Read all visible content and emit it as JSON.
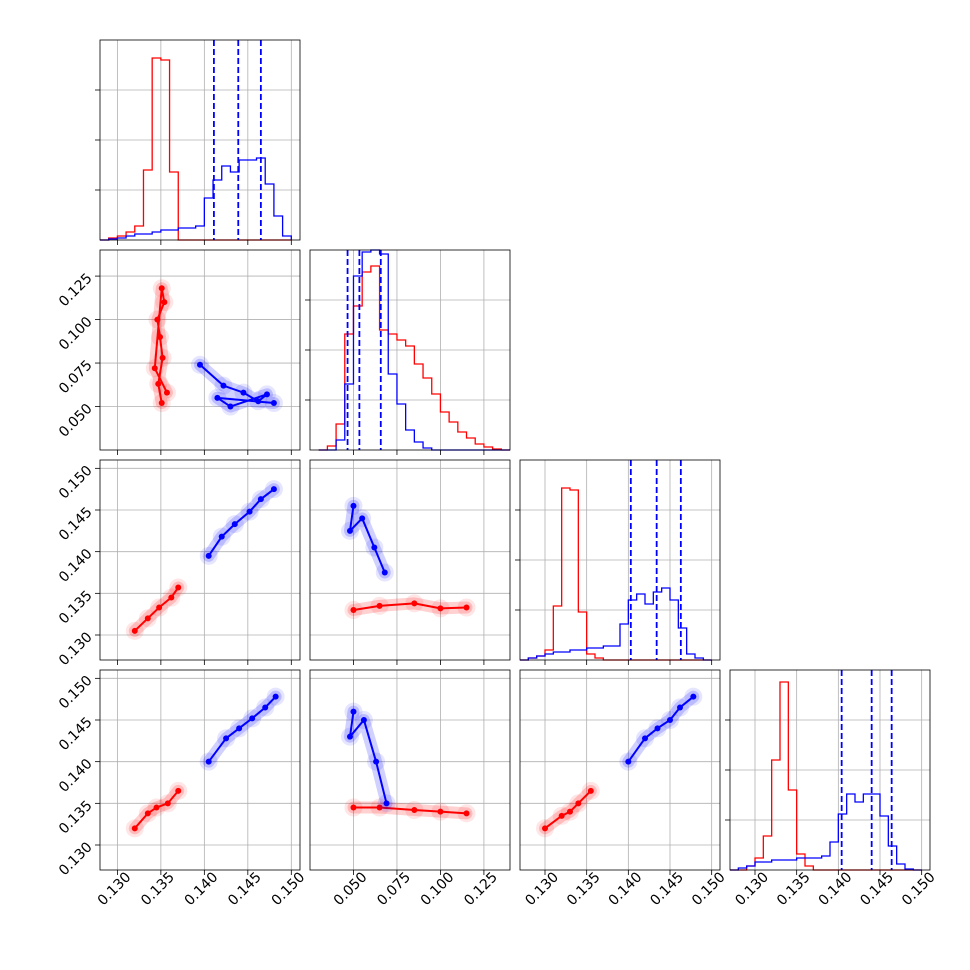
{
  "chart_data": {
    "type": "corner",
    "colors": {
      "series_a": "#ff0000",
      "series_b": "#0000ff",
      "grid": "#b0b0b0"
    },
    "grid": true,
    "parameters": [
      {
        "range": [
          0.128,
          0.151
        ],
        "ticks": [
          0.13,
          0.135,
          0.14,
          0.145,
          0.15
        ],
        "tick_labels": [
          "0.130",
          "0.135",
          "0.140",
          "0.145",
          "0.150"
        ]
      },
      {
        "range": [
          0.025,
          0.14
        ],
        "ticks": [
          0.05,
          0.075,
          0.1,
          0.125
        ],
        "tick_labels": [
          "0.050",
          "0.075",
          "0.100",
          "0.125"
        ]
      },
      {
        "range": [
          0.127,
          0.151
        ],
        "ticks": [
          0.13,
          0.135,
          0.14,
          0.145,
          0.15
        ],
        "tick_labels": [
          "0.130",
          "0.135",
          "0.140",
          "0.145",
          "0.150"
        ]
      },
      {
        "range": [
          0.127,
          0.151
        ],
        "ticks": [
          0.13,
          0.135,
          0.14,
          0.145,
          0.15
        ],
        "tick_labels": [
          "0.130",
          "0.135",
          "0.140",
          "0.145",
          "0.150"
        ]
      }
    ],
    "histograms": [
      {
        "param": 0,
        "ymax": 1.0,
        "series": [
          {
            "name": "",
            "color": "#ff0000",
            "edges": [
              0.128,
              0.129,
              0.13,
              0.131,
              0.132,
              0.133,
              0.134,
              0.135,
              0.136,
              0.137,
              0.138,
              0.139,
              0.14,
              0.141,
              0.142,
              0.143,
              0.144,
              0.145,
              0.146,
              0.147,
              0.148,
              0.149,
              0.15
            ],
            "counts": [
              0,
              0.01,
              0.02,
              0.04,
              0.07,
              0.35,
              0.91,
              0.9,
              0.34,
              0.0,
              0,
              0,
              0,
              0,
              0,
              0,
              0,
              0,
              0,
              0,
              0,
              0
            ]
          },
          {
            "name": "",
            "color": "#0000ff",
            "edges": [
              0.128,
              0.129,
              0.13,
              0.131,
              0.132,
              0.133,
              0.134,
              0.135,
              0.136,
              0.137,
              0.138,
              0.139,
              0.14,
              0.141,
              0.142,
              0.143,
              0.144,
              0.145,
              0.146,
              0.147,
              0.148,
              0.149,
              0.15
            ],
            "counts": [
              0,
              0.005,
              0.01,
              0.02,
              0.03,
              0.03,
              0.04,
              0.05,
              0.05,
              0.06,
              0.06,
              0.07,
              0.21,
              0.3,
              0.37,
              0.34,
              0.4,
              0.4,
              0.41,
              0.28,
              0.12,
              0.02
            ]
          }
        ],
        "quantiles_b": [
          0.1411,
          0.1439,
          0.1465
        ]
      },
      {
        "param": 1,
        "ymax": 1.0,
        "series": [
          {
            "name": "",
            "color": "#ff0000",
            "edges": [
              0.03,
              0.035,
              0.04,
              0.045,
              0.05,
              0.055,
              0.06,
              0.065,
              0.07,
              0.075,
              0.08,
              0.085,
              0.09,
              0.095,
              0.1,
              0.105,
              0.11,
              0.115,
              0.12,
              0.125,
              0.13,
              0.135,
              0.14
            ],
            "counts": [
              0,
              0.02,
              0.13,
              0.58,
              0.72,
              0.89,
              0.92,
              0.6,
              0.58,
              0.55,
              0.52,
              0.43,
              0.36,
              0.28,
              0.19,
              0.14,
              0.09,
              0.06,
              0.03,
              0.015,
              0.005,
              0
            ]
          },
          {
            "name": "",
            "color": "#0000ff",
            "edges": [
              0.03,
              0.035,
              0.04,
              0.045,
              0.05,
              0.055,
              0.06,
              0.065,
              0.07,
              0.075,
              0.08,
              0.085,
              0.09,
              0.095,
              0.1,
              0.105,
              0.11,
              0.115,
              0.12,
              0.125,
              0.13,
              0.135,
              0.14
            ],
            "counts": [
              0,
              0,
              0.05,
              0.33,
              0.87,
              0.99,
              1.0,
              0.98,
              0.38,
              0.23,
              0.1,
              0.04,
              0.01,
              0,
              0,
              0,
              0,
              0,
              0,
              0,
              0,
              0
            ]
          }
        ],
        "quantiles_b": [
          0.0466,
          0.0534,
          0.0657
        ]
      },
      {
        "param": 2,
        "ymax": 1.0,
        "series": [
          {
            "name": "",
            "color": "#ff0000",
            "edges": [
              0.127,
              0.128,
              0.129,
              0.13,
              0.131,
              0.132,
              0.133,
              0.134,
              0.135,
              0.136,
              0.137,
              0.138,
              0.139,
              0.14,
              0.141,
              0.142,
              0.143,
              0.144,
              0.145,
              0.146,
              0.147,
              0.148,
              0.149,
              0.15
            ],
            "counts": [
              0,
              0.01,
              0.02,
              0.05,
              0.27,
              0.86,
              0.85,
              0.24,
              0.03,
              0.01,
              0,
              0,
              0,
              0,
              0,
              0,
              0,
              0,
              0,
              0,
              0,
              0,
              0
            ]
          },
          {
            "name": "",
            "color": "#0000ff",
            "edges": [
              0.127,
              0.128,
              0.129,
              0.13,
              0.131,
              0.132,
              0.133,
              0.134,
              0.135,
              0.136,
              0.137,
              0.138,
              0.139,
              0.14,
              0.141,
              0.142,
              0.143,
              0.144,
              0.145,
              0.146,
              0.147,
              0.148,
              0.149,
              0.15
            ],
            "counts": [
              0,
              0.01,
              0.02,
              0.03,
              0.04,
              0.04,
              0.05,
              0.05,
              0.06,
              0.06,
              0.07,
              0.07,
              0.18,
              0.3,
              0.33,
              0.28,
              0.34,
              0.36,
              0.3,
              0.16,
              0.03,
              0.01,
              0
            ]
          }
        ],
        "quantiles_b": [
          0.1403,
          0.1434,
          0.1463
        ]
      },
      {
        "param": 3,
        "ymax": 1.0,
        "series": [
          {
            "name": "",
            "color": "#ff0000",
            "edges": [
              0.127,
              0.128,
              0.129,
              0.13,
              0.131,
              0.132,
              0.133,
              0.134,
              0.135,
              0.136,
              0.137,
              0.138,
              0.139,
              0.14,
              0.141,
              0.142,
              0.143,
              0.144,
              0.145,
              0.146,
              0.147,
              0.148,
              0.149,
              0.15
            ],
            "counts": [
              0,
              0,
              0.02,
              0.06,
              0.17,
              0.55,
              0.94,
              0.4,
              0.08,
              0.02,
              0,
              0,
              0,
              0,
              0,
              0,
              0,
              0,
              0,
              0,
              0,
              0,
              0
            ]
          },
          {
            "name": "",
            "color": "#0000ff",
            "edges": [
              0.127,
              0.128,
              0.129,
              0.13,
              0.131,
              0.132,
              0.133,
              0.134,
              0.135,
              0.136,
              0.137,
              0.138,
              0.139,
              0.14,
              0.141,
              0.142,
              0.143,
              0.144,
              0.145,
              0.146,
              0.147,
              0.148,
              0.149,
              0.15
            ],
            "counts": [
              0,
              0.01,
              0.02,
              0.04,
              0.04,
              0.05,
              0.05,
              0.05,
              0.06,
              0.06,
              0.06,
              0.07,
              0.14,
              0.28,
              0.38,
              0.34,
              0.38,
              0.38,
              0.27,
              0.12,
              0.03,
              0.005,
              0
            ]
          }
        ],
        "quantiles_b": [
          0.1404,
          0.144,
          0.1464
        ]
      }
    ],
    "scatters": [
      {
        "x_param": 0,
        "y_param": 1,
        "series": [
          {
            "name": "",
            "color": "#ff0000",
            "points": [
              [
                0.1351,
                0.052
              ],
              [
                0.1347,
                0.063
              ],
              [
                0.1352,
                0.078
              ],
              [
                0.1349,
                0.09
              ],
              [
                0.1346,
                0.1
              ],
              [
                0.1354,
                0.11
              ],
              [
                0.1351,
                0.118
              ],
              [
                0.1343,
                0.072
              ],
              [
                0.1357,
                0.058
              ]
            ]
          },
          {
            "name": "",
            "color": "#0000ff",
            "points": [
              [
                0.1395,
                0.074
              ],
              [
                0.1422,
                0.062
              ],
              [
                0.1445,
                0.058
              ],
              [
                0.1462,
                0.053
              ],
              [
                0.1472,
                0.057
              ],
              [
                0.143,
                0.05
              ],
              [
                0.1415,
                0.055
              ],
              [
                0.148,
                0.052
              ]
            ]
          }
        ]
      },
      {
        "x_param": 0,
        "y_param": 2,
        "series": [
          {
            "name": "",
            "color": "#ff0000",
            "points": [
              [
                0.132,
                0.1305
              ],
              [
                0.1335,
                0.132
              ],
              [
                0.1348,
                0.1333
              ],
              [
                0.1362,
                0.1345
              ],
              [
                0.137,
                0.1357
              ]
            ]
          },
          {
            "name": "",
            "color": "#0000ff",
            "points": [
              [
                0.1405,
                0.1395
              ],
              [
                0.142,
                0.1418
              ],
              [
                0.1435,
                0.1433
              ],
              [
                0.1452,
                0.1448
              ],
              [
                0.1465,
                0.1463
              ],
              [
                0.148,
                0.1475
              ]
            ]
          }
        ]
      },
      {
        "x_param": 1,
        "y_param": 2,
        "series": [
          {
            "name": "",
            "color": "#ff0000",
            "points": [
              [
                0.05,
                0.133
              ],
              [
                0.065,
                0.1335
              ],
              [
                0.085,
                0.1338
              ],
              [
                0.1,
                0.1332
              ],
              [
                0.115,
                0.1333
              ]
            ]
          },
          {
            "name": "",
            "color": "#0000ff",
            "points": [
              [
                0.05,
                0.1455
              ],
              [
                0.048,
                0.1425
              ],
              [
                0.055,
                0.144
              ],
              [
                0.062,
                0.1405
              ],
              [
                0.068,
                0.1375
              ]
            ]
          }
        ]
      },
      {
        "x_param": 0,
        "y_param": 3,
        "series": [
          {
            "name": "",
            "color": "#ff0000",
            "points": [
              [
                0.132,
                0.132
              ],
              [
                0.1335,
                0.1338
              ],
              [
                0.1345,
                0.1345
              ],
              [
                0.1358,
                0.135
              ],
              [
                0.137,
                0.1365
              ]
            ]
          },
          {
            "name": "",
            "color": "#0000ff",
            "points": [
              [
                0.1405,
                0.14
              ],
              [
                0.1425,
                0.1428
              ],
              [
                0.144,
                0.144
              ],
              [
                0.1455,
                0.1452
              ],
              [
                0.147,
                0.1465
              ],
              [
                0.1482,
                0.1478
              ]
            ]
          }
        ]
      },
      {
        "x_param": 1,
        "y_param": 3,
        "series": [
          {
            "name": "",
            "color": "#ff0000",
            "points": [
              [
                0.05,
                0.1345
              ],
              [
                0.065,
                0.1345
              ],
              [
                0.085,
                0.1342
              ],
              [
                0.1,
                0.134
              ],
              [
                0.115,
                0.1338
              ]
            ]
          },
          {
            "name": "",
            "color": "#0000ff",
            "points": [
              [
                0.05,
                0.146
              ],
              [
                0.048,
                0.143
              ],
              [
                0.056,
                0.145
              ],
              [
                0.063,
                0.14
              ],
              [
                0.069,
                0.135
              ]
            ]
          }
        ]
      },
      {
        "x_param": 2,
        "y_param": 3,
        "series": [
          {
            "name": "",
            "color": "#ff0000",
            "points": [
              [
                0.13,
                0.132
              ],
              [
                0.132,
                0.1335
              ],
              [
                0.133,
                0.134
              ],
              [
                0.134,
                0.135
              ],
              [
                0.1355,
                0.1365
              ]
            ]
          },
          {
            "name": "",
            "color": "#0000ff",
            "points": [
              [
                0.14,
                0.14
              ],
              [
                0.142,
                0.1428
              ],
              [
                0.1435,
                0.144
              ],
              [
                0.145,
                0.145
              ],
              [
                0.1462,
                0.1465
              ],
              [
                0.1478,
                0.1478
              ]
            ]
          }
        ]
      }
    ]
  }
}
